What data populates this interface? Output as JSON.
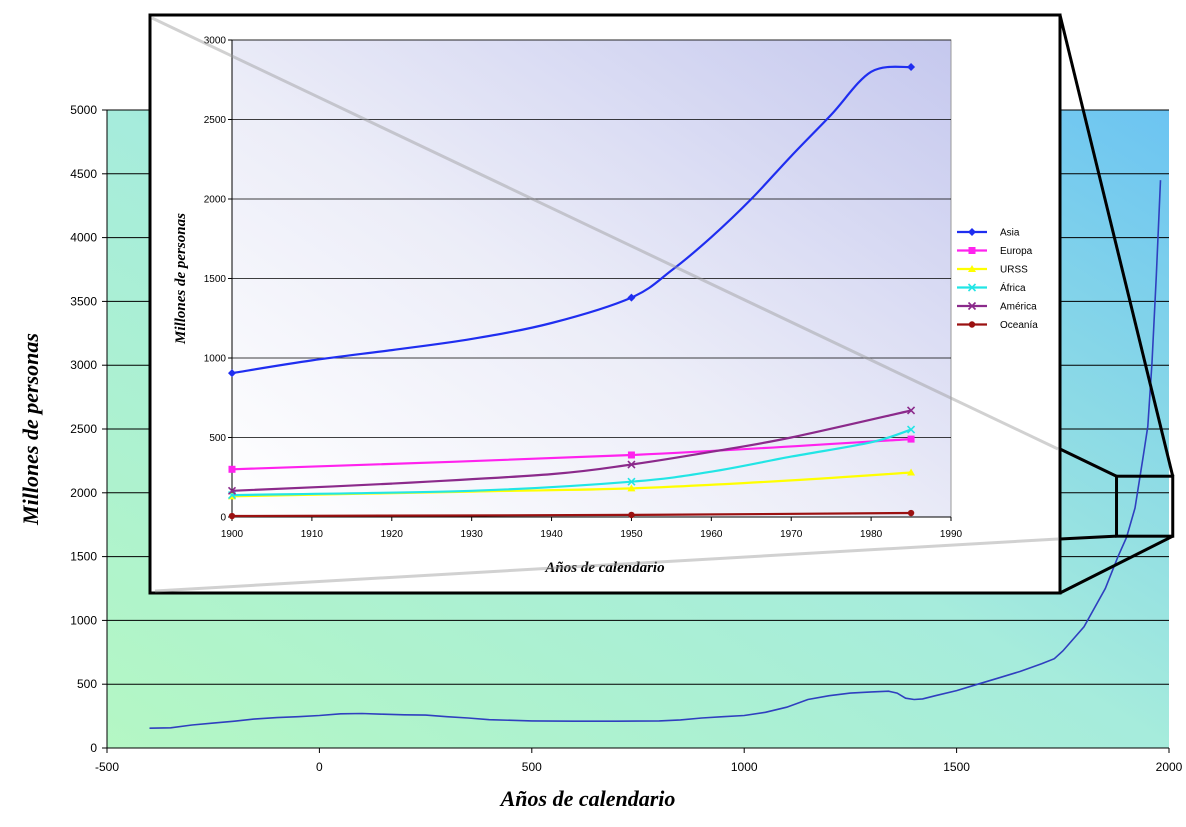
{
  "chart_data": [
    {
      "type": "line",
      "name": "main",
      "xlabel": "Años de calendario",
      "ylabel": "Millones de personas",
      "xlim": [
        -500,
        2000
      ],
      "ylim": [
        0,
        5000
      ],
      "xticks": [
        -500,
        0,
        500,
        1000,
        1500,
        2000
      ],
      "yticks": [
        0,
        500,
        1000,
        1500,
        2000,
        2500,
        3000,
        3500,
        4000,
        4500,
        5000
      ],
      "grid": "horizontal",
      "series": [
        {
          "color": "#2f3fbf",
          "points": [
            [
              -400,
              155
            ],
            [
              -350,
              158
            ],
            [
              -300,
              180
            ],
            [
              -250,
              195
            ],
            [
              -200,
              210
            ],
            [
              -150,
              228
            ],
            [
              -100,
              238
            ],
            [
              -50,
              245
            ],
            [
              0,
              255
            ],
            [
              50,
              268
            ],
            [
              100,
              270
            ],
            [
              150,
              265
            ],
            [
              200,
              260
            ],
            [
              250,
              258
            ],
            [
              300,
              245
            ],
            [
              350,
              235
            ],
            [
              400,
              222
            ],
            [
              500,
              212
            ],
            [
              600,
              210
            ],
            [
              700,
              210
            ],
            [
              800,
              212
            ],
            [
              850,
              220
            ],
            [
              900,
              235
            ],
            [
              950,
              245
            ],
            [
              1000,
              255
            ],
            [
              1050,
              280
            ],
            [
              1100,
              320
            ],
            [
              1150,
              380
            ],
            [
              1200,
              410
            ],
            [
              1250,
              430
            ],
            [
              1300,
              440
            ],
            [
              1340,
              445
            ],
            [
              1360,
              430
            ],
            [
              1380,
              390
            ],
            [
              1400,
              380
            ],
            [
              1420,
              385
            ],
            [
              1450,
              410
            ],
            [
              1500,
              450
            ],
            [
              1550,
              500
            ],
            [
              1600,
              550
            ],
            [
              1650,
              600
            ],
            [
              1700,
              660
            ],
            [
              1730,
              700
            ],
            [
              1750,
              760
            ],
            [
              1800,
              950
            ],
            [
              1850,
              1250
            ],
            [
              1880,
              1500
            ],
            [
              1900,
              1650
            ],
            [
              1920,
              1880
            ],
            [
              1940,
              2300
            ],
            [
              1950,
              2520
            ],
            [
              1960,
              3020
            ],
            [
              1970,
              3700
            ],
            [
              1980,
              4450
            ]
          ]
        }
      ]
    },
    {
      "type": "line",
      "name": "inset",
      "xlabel": "Años de calendario",
      "ylabel": "Millones de personas",
      "xlim": [
        1900,
        1990
      ],
      "ylim": [
        0,
        3000
      ],
      "xticks": [
        1900,
        1910,
        1920,
        1930,
        1940,
        1950,
        1960,
        1970,
        1980,
        1990
      ],
      "yticks": [
        0,
        500,
        1000,
        1500,
        2000,
        2500,
        3000
      ],
      "grid": "horizontal",
      "legend": "right",
      "series": [
        {
          "name": "Asia",
          "color": "#1f2ef0",
          "marker": "diamond",
          "marked_x": [
            1900,
            1950,
            1985
          ],
          "points": [
            [
              1900,
              905
            ],
            [
              1910,
              985
            ],
            [
              1920,
              1050
            ],
            [
              1930,
              1120
            ],
            [
              1940,
              1220
            ],
            [
              1950,
              1380
            ],
            [
              1955,
              1550
            ],
            [
              1960,
              1760
            ],
            [
              1965,
              2000
            ],
            [
              1970,
              2270
            ],
            [
              1975,
              2530
            ],
            [
              1980,
              2800
            ],
            [
              1985,
              2830
            ]
          ]
        },
        {
          "name": "Europa",
          "color": "#ff22ee",
          "marker": "square",
          "marked_x": [
            1900,
            1950,
            1985
          ],
          "points": [
            [
              1900,
              300
            ],
            [
              1950,
              390
            ],
            [
              1985,
              490
            ]
          ]
        },
        {
          "name": "URSS",
          "color": "#ffff00",
          "marker": "triangle",
          "marked_x": [
            1900,
            1950,
            1985
          ],
          "points": [
            [
              1900,
              130
            ],
            [
              1930,
              160
            ],
            [
              1950,
              180
            ],
            [
              1970,
              230
            ],
            [
              1985,
              280
            ]
          ]
        },
        {
          "name": "África",
          "color": "#22e5e5",
          "marker": "x",
          "marked_x": [
            1900,
            1950,
            1985
          ],
          "points": [
            [
              1900,
              138
            ],
            [
              1930,
              165
            ],
            [
              1950,
              222
            ],
            [
              1960,
              285
            ],
            [
              1970,
              380
            ],
            [
              1980,
              470
            ],
            [
              1985,
              550
            ]
          ]
        },
        {
          "name": "América",
          "color": "#8b2a8b",
          "marker": "x",
          "marked_x": [
            1900,
            1950,
            1985
          ],
          "points": [
            [
              1900,
              165
            ],
            [
              1920,
              210
            ],
            [
              1940,
              270
            ],
            [
              1950,
              330
            ],
            [
              1960,
              410
            ],
            [
              1970,
              500
            ],
            [
              1985,
              670
            ]
          ]
        },
        {
          "name": "Oceanía",
          "color": "#9b1111",
          "marker": "circle",
          "marked_x": [
            1900,
            1950,
            1985
          ],
          "points": [
            [
              1900,
              6
            ],
            [
              1950,
              13
            ],
            [
              1985,
              25
            ]
          ]
        }
      ]
    }
  ]
}
